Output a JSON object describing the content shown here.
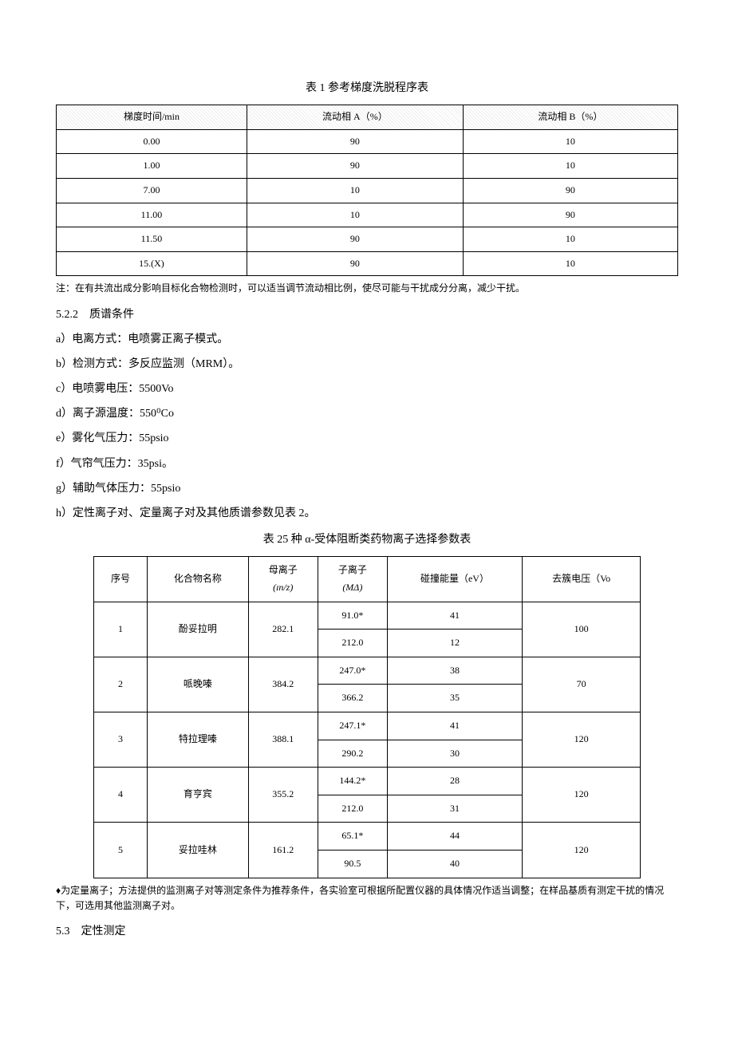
{
  "table1": {
    "title": "表 1 参考梯度洗脱程序表",
    "headers": [
      "梯度时间/min",
      "流动相 A（%）",
      "流动相 B（%）"
    ],
    "rows": [
      [
        "0.00",
        "90",
        "10"
      ],
      [
        "1.00",
        "90",
        "10"
      ],
      [
        "7.00",
        "10",
        "90"
      ],
      [
        "11.00",
        "10",
        "90"
      ],
      [
        "11.50",
        "90",
        "10"
      ],
      [
        "15.(X)",
        "90",
        "10"
      ]
    ],
    "note": "注：在有共流出成分影响目标化合物检测时，可以适当调节流动相比例，使尽可能与干扰成分分离，减少干扰。"
  },
  "section522": {
    "heading": "5.2.2　质谱条件",
    "items": [
      "a）电离方式：电喷雾正离子模式。",
      "b）检测方式：多反应监测（MRM）。",
      "c）电喷雾电压：5500Vo",
      "d）离子源温度：550⁰Co",
      "e）雾化气压力：55psio",
      "f）气帘气压力：35psi。",
      "g）辅助气体压力：55psio",
      "h）定性离子对、定量离子对及其他质谱参数见表 2。"
    ]
  },
  "table2": {
    "title": "表 25 种 α-受体阻断类药物离子选择参数表",
    "headers": [
      "序号",
      "化合物名称",
      "母离子",
      "mz_unit",
      "子离子",
      "ma_unit",
      "碰撞能量（eV）",
      "去簇电压（Vo"
    ],
    "mz_label": "(ɪn/z)",
    "ma_label": "(MΔ)",
    "compounds": [
      {
        "idx": "1",
        "name": "酚妥拉明",
        "parent": "282.1",
        "child1": "91.0*",
        "ce1": "41",
        "child2": "212.0",
        "ce2": "12",
        "dp": "100"
      },
      {
        "idx": "2",
        "name": "哌晚嗪",
        "parent": "384.2",
        "child1": "247.0*",
        "ce1": "38",
        "child2": "366.2",
        "ce2": "35",
        "dp": "70"
      },
      {
        "idx": "3",
        "name": "特拉理嗪",
        "parent": "388.1",
        "child1": "247.1*",
        "ce1": "41",
        "child2": "290.2",
        "ce2": "30",
        "dp": "120"
      },
      {
        "idx": "4",
        "name": "育亨宾",
        "parent": "355.2",
        "child1": "144.2*",
        "ce1": "28",
        "child2": "212.0",
        "ce2": "31",
        "dp": "120"
      },
      {
        "idx": "5",
        "name": "妥拉哇林",
        "parent": "161.2",
        "child1": "65.1*",
        "ce1": "44",
        "child2": "90.5",
        "ce2": "40",
        "dp": "120"
      }
    ],
    "note": "♦为定量离子；方法提供的监测离子对等测定条件为推荐条件，各实验室可根据所配置仪器的具体情况作适当调整；在样品基质有测定干扰的情况下，可选用其他监测离子对。"
  },
  "section53": {
    "heading": "5.3　定性测定"
  }
}
